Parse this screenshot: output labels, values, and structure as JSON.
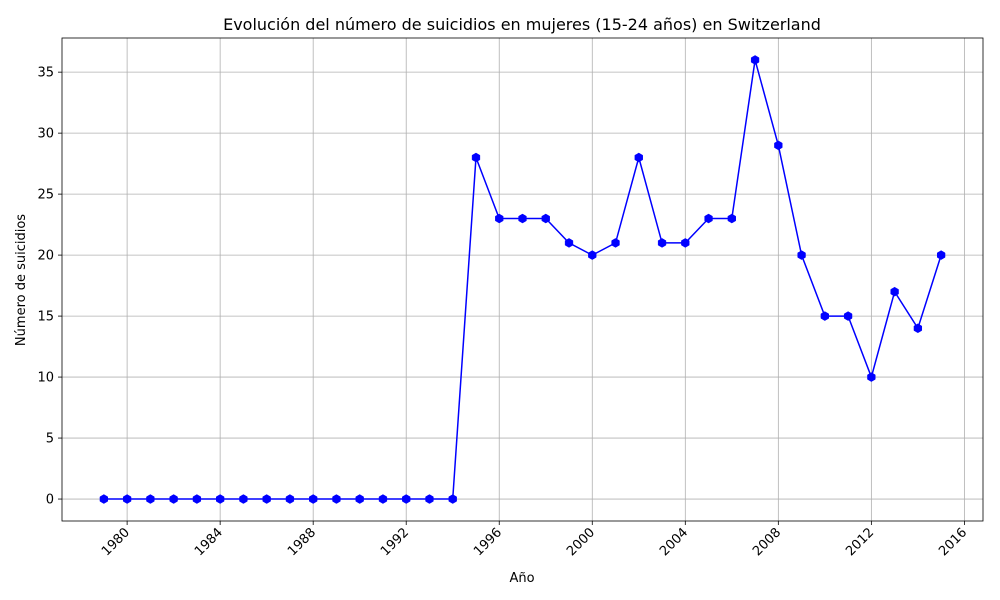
{
  "chart_data": {
    "type": "line",
    "title": "Evolución del número de suicidios en mujeres (15-24 años) en Switzerland",
    "xlabel": "Año",
    "ylabel": "Número de suicidios",
    "x": [
      1979,
      1980,
      1981,
      1982,
      1983,
      1984,
      1985,
      1986,
      1987,
      1988,
      1989,
      1990,
      1991,
      1992,
      1993,
      1994,
      1995,
      1996,
      1997,
      1998,
      1999,
      2000,
      2001,
      2002,
      2003,
      2004,
      2005,
      2006,
      2007,
      2008,
      2009,
      2010,
      2011,
      2012,
      2013,
      2014,
      2015
    ],
    "series": [
      {
        "values": [
          0,
          0,
          0,
          0,
          0,
          0,
          0,
          0,
          0,
          0,
          0,
          0,
          0,
          0,
          0,
          0,
          28,
          23,
          23,
          23,
          21,
          20,
          21,
          28,
          21,
          21,
          23,
          23,
          36,
          29,
          20,
          15,
          15,
          10,
          17,
          14,
          20
        ],
        "color": "#0000ff"
      }
    ],
    "xlim": [
      1977.2,
      2016.8
    ],
    "ylim": [
      -1.8,
      37.8
    ],
    "xticks": [
      "1980",
      "1984",
      "1988",
      "1992",
      "1996",
      "2000",
      "2004",
      "2008",
      "2012",
      "2016"
    ],
    "yticks": [
      "0",
      "5",
      "10",
      "15",
      "20",
      "25",
      "30",
      "35"
    ],
    "grid": true,
    "marker": "hexagon"
  }
}
